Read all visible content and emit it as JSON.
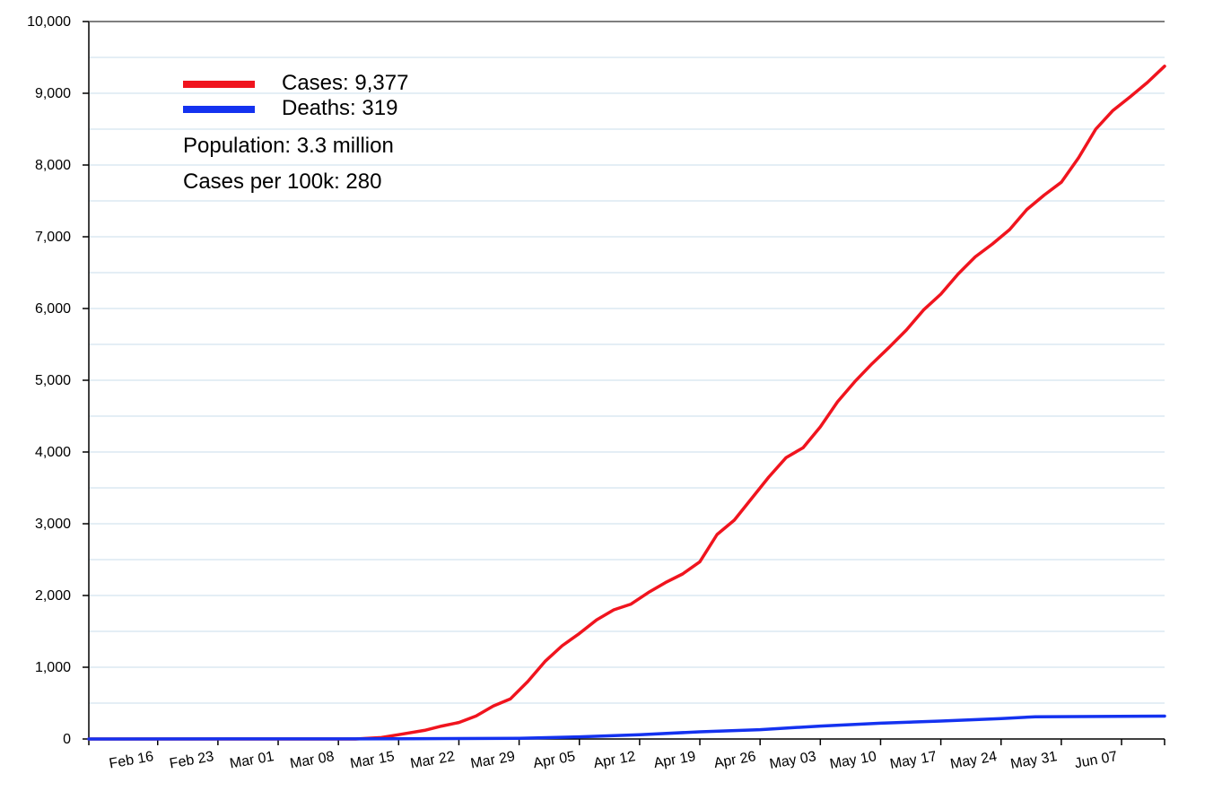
{
  "chart_data": {
    "type": "line",
    "title": "",
    "xlabel": "",
    "ylabel": "",
    "ylim": [
      0,
      10000
    ],
    "yticks": [
      0,
      1000,
      2000,
      3000,
      4000,
      5000,
      6000,
      7000,
      8000,
      9000,
      10000
    ],
    "y_tick_labels": [
      "0",
      "1,000",
      "2,000",
      "3,000",
      "4,000",
      "5,000",
      "6,000",
      "7,000",
      "8,000",
      "9,000",
      "10,000"
    ],
    "x_range": [
      "2020-02-08",
      "2020-06-12"
    ],
    "x_ticks": [
      "2020-02-16",
      "2020-02-23",
      "2020-03-01",
      "2020-03-08",
      "2020-03-15",
      "2020-03-22",
      "2020-03-29",
      "2020-04-05",
      "2020-04-12",
      "2020-04-19",
      "2020-04-26",
      "2020-05-03",
      "2020-05-10",
      "2020-05-17",
      "2020-05-24",
      "2020-05-31",
      "2020-06-07"
    ],
    "x_tick_labels": [
      "Feb 16",
      "Feb 23",
      "Mar 01",
      "Mar 08",
      "Mar 15",
      "Mar 22",
      "Mar 29",
      "Apr 05",
      "Apr 12",
      "Apr 19",
      "Apr 26",
      "May 03",
      "May 10",
      "May 17",
      "May 24",
      "May 31",
      "Jun 07"
    ],
    "grid": true,
    "legend_position": "top-left",
    "legend": {
      "cases_label": "Cases: 9,377",
      "deaths_label": "Deaths: 319",
      "population": "Population: 3.3 million",
      "per_100k": "Cases per 100k: 280"
    },
    "colors": {
      "cases": "#f0141e",
      "deaths": "#1432f0",
      "grid": "#dce9f2"
    },
    "series": [
      {
        "key": "cases",
        "x": [
          "2020-02-08",
          "2020-03-10",
          "2020-03-13",
          "2020-03-15",
          "2020-03-18",
          "2020-03-20",
          "2020-03-22",
          "2020-03-24",
          "2020-03-26",
          "2020-03-28",
          "2020-03-30",
          "2020-04-01",
          "2020-04-03",
          "2020-04-05",
          "2020-04-07",
          "2020-04-09",
          "2020-04-11",
          "2020-04-13",
          "2020-04-15",
          "2020-04-17",
          "2020-04-19",
          "2020-04-21",
          "2020-04-23",
          "2020-04-25",
          "2020-04-27",
          "2020-04-29",
          "2020-05-01",
          "2020-05-03",
          "2020-05-05",
          "2020-05-07",
          "2020-05-09",
          "2020-05-11",
          "2020-05-13",
          "2020-05-15",
          "2020-05-17",
          "2020-05-19",
          "2020-05-21",
          "2020-05-23",
          "2020-05-25",
          "2020-05-27",
          "2020-05-29",
          "2020-05-31",
          "2020-06-02",
          "2020-06-04",
          "2020-06-06",
          "2020-06-08",
          "2020-06-10",
          "2020-06-12"
        ],
        "y": [
          0,
          0,
          20,
          60,
          120,
          180,
          230,
          320,
          460,
          560,
          800,
          1080,
          1300,
          1470,
          1660,
          1800,
          1880,
          2040,
          2180,
          2300,
          2470,
          2850,
          3050,
          3350,
          3650,
          3920,
          4060,
          4350,
          4700,
          4980,
          5230,
          5460,
          5700,
          5980,
          6200,
          6480,
          6720,
          6900,
          7100,
          7380,
          7580,
          7760,
          8100,
          8500,
          8760,
          8950,
          9150,
          9377
        ]
      },
      {
        "key": "deaths",
        "x": [
          "2020-02-08",
          "2020-03-15",
          "2020-03-29",
          "2020-04-05",
          "2020-04-12",
          "2020-04-19",
          "2020-04-26",
          "2020-05-03",
          "2020-05-10",
          "2020-05-17",
          "2020-05-24",
          "2020-05-28",
          "2020-06-12"
        ],
        "y": [
          0,
          2,
          10,
          30,
          60,
          100,
          130,
          180,
          220,
          250,
          285,
          310,
          319
        ]
      }
    ]
  }
}
